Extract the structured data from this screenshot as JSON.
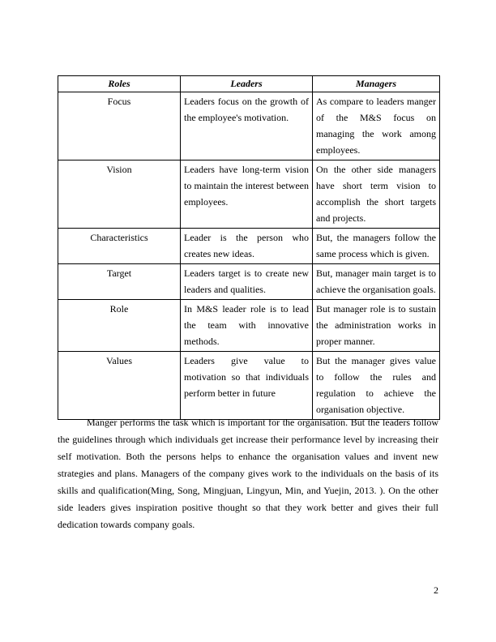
{
  "table": {
    "headers": [
      "Roles",
      "Leaders",
      "Managers"
    ],
    "rows": [
      {
        "role": "Focus",
        "leaders": "Leaders focus on the growth of the employee's motivation.",
        "managers": "As compare to leaders manger of the M&S focus on managing the work among employees."
      },
      {
        "role": "Vision",
        "leaders": "Leaders have long-term vision to maintain the interest between employees.",
        "managers": "On the other side managers have short term vision to accomplish the short targets and projects."
      },
      {
        "role": "Characteristics",
        "leaders": "Leader is the person who creates new ideas.",
        "managers": "But, the managers follow the same process which is given."
      },
      {
        "role": "Target",
        "leaders": "Leaders target is to create new leaders and qualities.",
        "managers": "But, manager main target is to achieve the organisation goals."
      },
      {
        "role": "Role",
        "leaders": "In M&S leader role is to lead the team with innovative methods.",
        "managers": "But manager role is to sustain the administration works in proper manner."
      },
      {
        "role": "Values",
        "leaders": "Leaders give value to motivation so that individuals perform better in future",
        "managers": "But the manager gives value to follow the rules and regulation to achieve the organisation objective."
      }
    ]
  },
  "paragraph": "Manger performs the task which is important for the organisation. But the leaders follow the guidelines through which individuals get increase their performance level by increasing their self motivation. Both the persons helps to enhance the organisation values and invent new strategies and plans. Managers of the company gives work to the individuals on the basis of its skills and qualification(Ming, Song, Mingjuan, Lingyun, Min, and Yuejin, 2013. ). On the other side leaders gives inspiration positive thought so that they work better and gives their full dedication towards company goals.",
  "page_number": "2"
}
